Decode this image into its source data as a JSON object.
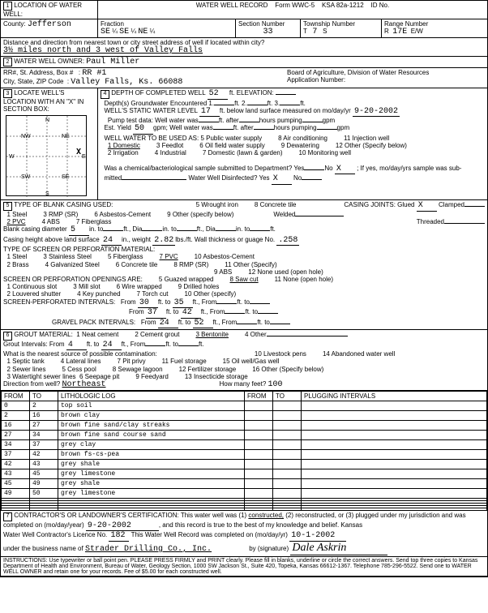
{
  "header": {
    "title": "WATER WELL RECORD",
    "form": "Form WWC-5",
    "ksa": "KSA 82a-1212",
    "id": "ID No."
  },
  "loc": {
    "county_lbl": "County:",
    "county": "Jefferson",
    "fraction": "Fraction",
    "sec_lbl": "Section Number",
    "sec": "33",
    "twp_lbl": "Township Number",
    "twp": "7",
    "rng_lbl": "Range Number",
    "rng": "17E",
    "se": "SE",
    "ne": "NE",
    "quarter": "¼",
    "t": "T",
    "s": "S",
    "r": "R",
    "ew": "E/W"
  },
  "dist_lbl": "Distance and direction from nearest town or city street address of well if located within city?",
  "dist": "3½ miles north and 3 west of Valley Falls",
  "owner_lbl": "WATER WELL OWNER:",
  "owner": "Paul Miller",
  "rr_lbl": "RR#, St. Address, Box #",
  "rr": "RR #1",
  "city_lbl": "City, State, ZIP Code",
  "city": "Valley Falls, Ks.  66088",
  "board": "Board of Agriculture, Division of Water Resources",
  "appnum": "Application Number:",
  "sec3": "LOCATE WELL'S LOCATION WITH AN \"X\" IN SECTION BOX:",
  "compass": {
    "nw": "NW",
    "ne": "NE",
    "n": "N",
    "e": "E",
    "s": "S",
    "w": "W",
    "sw": "SW",
    "se": "SE",
    "x": "X"
  },
  "sec4": {
    "title": "DEPTH OF COMPLETED WELL",
    "depth": "52",
    "elev": "ft. ELEVATION:",
    "gw": "Depth(s) Groundwater Encountered",
    "gw1": "1.",
    "gw2": "2.",
    "gw3": "3.",
    "static": "WELL'S STATIC WATER LEVEL",
    "static_v": "17",
    "static_t": "ft. below land surface measured on mo/day/yr",
    "date": "9-20-2002",
    "pump": "Pump test data:",
    "wellwater": "Well water was",
    "after": "ft. after",
    "hrs": "hours pumping",
    "gpm": "gpm",
    "est": "Est. Yield",
    "est_v": "50",
    "used": "WELL WATER TO BE USED AS:",
    "u1": "1 Domestic",
    "u2": "2 Irrigation",
    "u3": "3 Feedlot",
    "u4": "4 Industrial",
    "u5": "5 Public water supply",
    "u6": "6 Oil field water supply",
    "u7": "7 Domestic (lawn & garden)",
    "u8": "8 Air conditioning",
    "u9": "9 Dewatering",
    "u10": "10 Monitoring well",
    "u11": "11 Injection well",
    "u12": "12 Other (Specify below)",
    "chem": "Was a chemical/bacteriological sample submitted to Department? Yes",
    "no": "No",
    "x": "X",
    "if": "; If yes, mo/day/yrs sample was sub-",
    "mitted": "mitted",
    "disinfect": "Water Well Disinfected? Yes",
    "xx": "X"
  },
  "sec5": {
    "title": "TYPE OF BLANK CASING USED:",
    "c1": "1 Steel",
    "c2": "2 PVC",
    "c3": "3 RMP (SR)",
    "c4": "4 ABS",
    "c5": "5 Wrought iron",
    "c6": "6 Asbestos-Cement",
    "c7": "7 Fiberglass",
    "c8": "8 Concrete tile",
    "c9": "9 Other (specify below)",
    "joints": "CASING JOINTS: Glued",
    "glued_x": "X",
    "clamped": "Clamped",
    "welded": "Welded",
    "threaded": "Threaded",
    "bcd": "Blank casing diameter",
    "bcd_v": "5",
    "into": "in. to",
    "ftdia": "ft., Dia",
    "into2": "in. to",
    "ft": "ft.",
    "cht": "Casing height above land surface",
    "cht_v": "24",
    "inwt": "in., weight",
    "wt": "2.82",
    "lbsft": "lbs./ft. Wall thickness or guage No.",
    "gauge": ".258",
    "screen": "TYPE OF SCREEN OR PERFORATION MATERIAL:",
    "s1": "1 Steel",
    "s2": "2 Brass",
    "s3": "3 Stainless Steel",
    "s4": "4 Galvanized Steel",
    "s5": "5 Fiberglass",
    "s6": "6 Concrete tile",
    "s7": "7 PVC",
    "s8": "8 RMP (SR)",
    "s9": "9 ABS",
    "s10": "10 Asbestos-Cement",
    "s11": "11 Other (Specify)",
    "s12": "12 None used (open hole)",
    "open": "SCREEN OR PERFORATION OPENINGS ARE:",
    "o1": "1 Continuous slot",
    "o2": "2 Louvered shutter",
    "o3": "3 Mill slot",
    "o4": "4 Key punched",
    "o5": "5 Guazed wrapped",
    "o6": "6 Wire wrapped",
    "o7": "7 Torch cut",
    "o8": "8 Saw cut",
    "o9": "9 Drilled holes",
    "o10": "10 Other (specify)",
    "o11": "11 None (open hole)",
    "spi": "SCREEN-PERFORATED INTERVALS:",
    "gpi": "GRAVEL PACK INTERVALS:",
    "from": "From",
    "to": "ft. to",
    "ftfrom": "ft., From",
    "rowA": {
      "f": "30",
      "t": "35"
    },
    "rowB": {
      "f": "37",
      "t": "42"
    },
    "rowC": {
      "f": "24",
      "t": "52"
    }
  },
  "sec6": {
    "title": "GROUT MATERIAL:",
    "g1": "1 Neat cement",
    "g2": "2 Cement grout",
    "g3": "3 Bentonite",
    "g4": "4 Other",
    "gi": "Grout Intervals: From",
    "gi_f": "4",
    "gi_t": "24",
    "ftto": "ft. to",
    "ft": "ft., From",
    "ft2": "ft. to",
    "ft3": "ft.",
    "near": "What is the nearest source of possible contamination:",
    "n1": "1 Septic tank",
    "n2": "2 Sewer lines",
    "n3": "3 Watertight sewer lines",
    "n4": "4 Lateral lines",
    "n5": "5 Cess pool",
    "n6": "6 Seepage pit",
    "n7": "7 Pit privy",
    "n8": "8 Sewage lagoon",
    "n9": "9 Feedyard",
    "n10": "10 Livestock pens",
    "n11": "11 Fuel storage",
    "n12": "12 Fertilizer storage",
    "n13": "13 Insecticide storage",
    "n14": "14 Abandoned water well",
    "n15": "15 Oil well/Gas well",
    "n16": "16 Other (Specify below)",
    "dir": "Direction from well?",
    "dir_v": "Northeast",
    "feet": "How many feet?",
    "feet_v": "100"
  },
  "log": {
    "h1": "FROM",
    "h2": "TO",
    "h3": "LITHOLOGIC LOG",
    "h4": "FROM",
    "h5": "TO",
    "h6": "PLUGGING INTERVALS",
    "rows": [
      {
        "f": "0",
        "t": "2",
        "d": "top soil"
      },
      {
        "f": "2",
        "t": "16",
        "d": "brown clay"
      },
      {
        "f": "16",
        "t": "27",
        "d": "brown fine sand/clay streaks"
      },
      {
        "f": "27",
        "t": "34",
        "d": "brown fine sand course sand"
      },
      {
        "f": "34",
        "t": "37",
        "d": "grey clay"
      },
      {
        "f": "37",
        "t": "42",
        "d": "brown fs-cs-pea"
      },
      {
        "f": "42",
        "t": "43",
        "d": "grey shale"
      },
      {
        "f": "43",
        "t": "45",
        "d": "grey limestone"
      },
      {
        "f": "45",
        "t": "49",
        "d": "grey shale"
      },
      {
        "f": "49",
        "t": "50",
        "d": "grey limestone"
      }
    ]
  },
  "sec7": {
    "text1": "CONTRACTOR'S OR LANDOWNER'S CERTIFICATION: This water well was (1)",
    "constructed": "constructed,",
    "text2": "(2) reconstructed, or (3) plugged under my jurisdiction and was",
    "text3": "completed on (mo/day/year)",
    "date1": "9-20-2002",
    "text4": ", and this record is true to the best of my knowledge and belief. Kansas",
    "text5": "Water Well Contractor's Licence No.",
    "lic": "182",
    "text6": "This Water Well Record was completed on (mo/day/yr)",
    "date2": "10-1-2002",
    "text7": "under the business name of",
    "biz": "Strader Drilling Co., Inc.",
    "by": "by (signature)",
    "sig": "Dale Askrin"
  },
  "instr": "INSTRUCTIONS: Use typewriter or ball point pen. PLEASE PRESS FIRMLY and PRINT clearly. Please fill in blanks, underline or circle the correct answers. Send top three copies to Kansas Department of Health and Environment, Bureau of Water, Geology Section, 1000 SW Jackson St., Suite 420, Topeka, Kansas 66612-1367. Telephone 785-296-5522. Send one to WATER WELL OWNER and retain one for your records. Fee of $5.00 for each constructed well."
}
